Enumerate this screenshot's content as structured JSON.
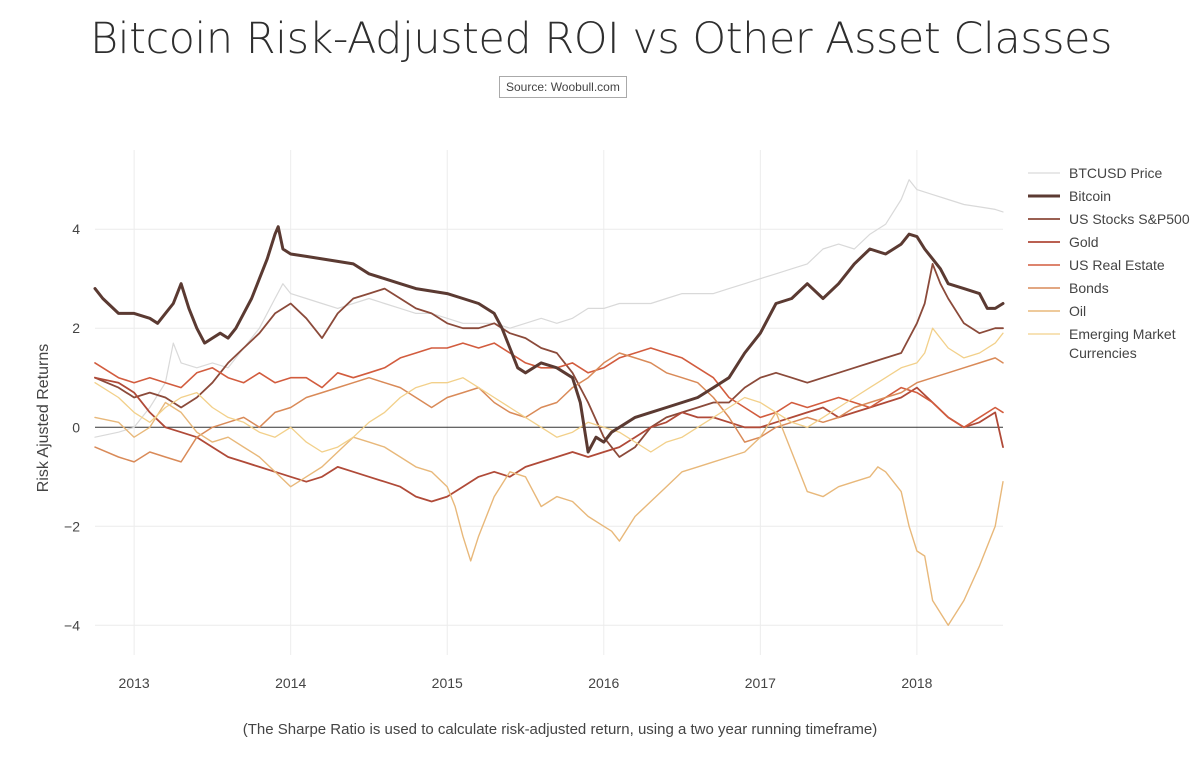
{
  "header": {
    "title": "Bitcoin Risk-Adjusted ROI vs Other Asset Classes",
    "source": "Source: Woobull.com"
  },
  "footnote": "(The Sharpe Ratio is used to calculate risk-adjusted return, using a two year running timeframe)",
  "chart_data": {
    "type": "line",
    "title": "Bitcoin Risk-Adjusted ROI vs Other Asset Classes",
    "ylabel": "Risk Ajusted Returns",
    "xlabel": "",
    "xlim": [
      2012.75,
      2018.55
    ],
    "ylim": [
      -4.6,
      5.6
    ],
    "xticks": [
      2013,
      2014,
      2015,
      2016,
      2017,
      2018
    ],
    "xtick_labels": [
      "2013",
      "2014",
      "2015",
      "2016",
      "2017",
      "2018"
    ],
    "yticks": [
      -4,
      -2,
      0,
      2,
      4
    ],
    "ytick_labels": [
      "−4",
      "−2",
      "0",
      "2",
      "4"
    ],
    "grid": true,
    "zero_line": true,
    "legend_position": "right",
    "series": [
      {
        "name": "BTCUSD Price",
        "color": "#d9d9d9",
        "width": 1.2,
        "x": [
          2012.75,
          2012.9,
          2013.0,
          2013.1,
          2013.2,
          2013.25,
          2013.3,
          2013.4,
          2013.5,
          2013.6,
          2013.7,
          2013.8,
          2013.9,
          2013.95,
          2014.0,
          2014.1,
          2014.2,
          2014.3,
          2014.4,
          2014.5,
          2014.6,
          2014.7,
          2014.8,
          2014.9,
          2015.0,
          2015.1,
          2015.2,
          2015.3,
          2015.4,
          2015.5,
          2015.6,
          2015.7,
          2015.8,
          2015.9,
          2016.0,
          2016.1,
          2016.2,
          2016.3,
          2016.4,
          2016.5,
          2016.6,
          2016.7,
          2016.8,
          2016.9,
          2017.0,
          2017.1,
          2017.2,
          2017.3,
          2017.4,
          2017.5,
          2017.6,
          2017.7,
          2017.8,
          2017.9,
          2017.95,
          2018.0,
          2018.1,
          2018.2,
          2018.3,
          2018.4,
          2018.5,
          2018.55
        ],
        "y": [
          -0.2,
          -0.1,
          0.0,
          0.4,
          0.9,
          1.7,
          1.3,
          1.2,
          1.3,
          1.2,
          1.6,
          2.0,
          2.6,
          2.9,
          2.7,
          2.6,
          2.5,
          2.4,
          2.5,
          2.6,
          2.5,
          2.4,
          2.3,
          2.3,
          2.2,
          2.1,
          2.1,
          2.1,
          2.0,
          2.1,
          2.2,
          2.1,
          2.2,
          2.4,
          2.4,
          2.5,
          2.5,
          2.5,
          2.6,
          2.7,
          2.7,
          2.7,
          2.8,
          2.9,
          3.0,
          3.1,
          3.2,
          3.3,
          3.6,
          3.7,
          3.6,
          3.9,
          4.1,
          4.6,
          5.0,
          4.8,
          4.7,
          4.6,
          4.5,
          4.45,
          4.4,
          4.35
        ]
      },
      {
        "name": "Bitcoin",
        "color": "#5b3a32",
        "width": 3,
        "x": [
          2012.75,
          2012.8,
          2012.9,
          2013.0,
          2013.1,
          2013.15,
          2013.2,
          2013.25,
          2013.3,
          2013.35,
          2013.4,
          2013.45,
          2013.5,
          2013.55,
          2013.6,
          2013.65,
          2013.7,
          2013.75,
          2013.8,
          2013.85,
          2013.9,
          2013.92,
          2013.95,
          2014.0,
          2014.1,
          2014.2,
          2014.3,
          2014.4,
          2014.5,
          2014.6,
          2014.7,
          2014.8,
          2014.9,
          2015.0,
          2015.1,
          2015.2,
          2015.3,
          2015.35,
          2015.4,
          2015.45,
          2015.5,
          2015.6,
          2015.7,
          2015.8,
          2015.85,
          2015.9,
          2015.95,
          2016.0,
          2016.05,
          2016.1,
          2016.2,
          2016.3,
          2016.4,
          2016.5,
          2016.6,
          2016.7,
          2016.8,
          2016.9,
          2017.0,
          2017.1,
          2017.2,
          2017.3,
          2017.4,
          2017.5,
          2017.6,
          2017.7,
          2017.8,
          2017.9,
          2017.95,
          2018.0,
          2018.05,
          2018.1,
          2018.15,
          2018.2,
          2018.3,
          2018.4,
          2018.45,
          2018.5,
          2018.55
        ],
        "y": [
          2.8,
          2.6,
          2.3,
          2.3,
          2.2,
          2.1,
          2.3,
          2.5,
          2.9,
          2.4,
          2.0,
          1.7,
          1.8,
          1.9,
          1.8,
          2.0,
          2.3,
          2.6,
          3.0,
          3.4,
          3.9,
          4.05,
          3.6,
          3.5,
          3.45,
          3.4,
          3.35,
          3.3,
          3.1,
          3.0,
          2.9,
          2.8,
          2.75,
          2.7,
          2.6,
          2.5,
          2.3,
          2.0,
          1.6,
          1.2,
          1.1,
          1.3,
          1.2,
          1.0,
          0.5,
          -0.5,
          -0.2,
          -0.3,
          -0.1,
          0.0,
          0.2,
          0.3,
          0.4,
          0.5,
          0.6,
          0.8,
          1.0,
          1.5,
          1.9,
          2.5,
          2.6,
          2.9,
          2.6,
          2.9,
          3.3,
          3.6,
          3.5,
          3.7,
          3.9,
          3.85,
          3.6,
          3.4,
          3.2,
          2.9,
          2.8,
          2.7,
          2.4,
          2.4,
          2.5
        ]
      },
      {
        "name": "US Stocks S&P500",
        "color": "#8b4a3a",
        "width": 1.8,
        "x": [
          2012.75,
          2012.9,
          2013.0,
          2013.1,
          2013.2,
          2013.3,
          2013.4,
          2013.5,
          2013.6,
          2013.7,
          2013.8,
          2013.9,
          2014.0,
          2014.1,
          2014.2,
          2014.3,
          2014.4,
          2014.5,
          2014.6,
          2014.7,
          2014.8,
          2014.9,
          2015.0,
          2015.1,
          2015.2,
          2015.3,
          2015.4,
          2015.5,
          2015.6,
          2015.7,
          2015.8,
          2015.9,
          2016.0,
          2016.1,
          2016.2,
          2016.3,
          2016.4,
          2016.5,
          2016.6,
          2016.7,
          2016.8,
          2016.9,
          2017.0,
          2017.1,
          2017.2,
          2017.3,
          2017.4,
          2017.5,
          2017.6,
          2017.7,
          2017.8,
          2017.9,
          2018.0,
          2018.05,
          2018.1,
          2018.15,
          2018.2,
          2018.3,
          2018.4,
          2018.5,
          2018.55
        ],
        "y": [
          1.0,
          0.8,
          0.6,
          0.7,
          0.6,
          0.4,
          0.6,
          0.9,
          1.3,
          1.6,
          1.9,
          2.3,
          2.5,
          2.2,
          1.8,
          2.3,
          2.6,
          2.7,
          2.8,
          2.6,
          2.4,
          2.3,
          2.1,
          2.0,
          2.0,
          2.1,
          1.9,
          1.8,
          1.6,
          1.5,
          1.1,
          0.5,
          -0.2,
          -0.6,
          -0.4,
          0.0,
          0.2,
          0.3,
          0.4,
          0.5,
          0.5,
          0.8,
          1.0,
          1.1,
          1.0,
          0.9,
          1.0,
          1.1,
          1.2,
          1.3,
          1.4,
          1.5,
          2.1,
          2.5,
          3.3,
          2.9,
          2.6,
          2.1,
          1.9,
          2.0,
          2.0
        ]
      },
      {
        "name": "Gold",
        "color": "#b04a38",
        "width": 1.8,
        "x": [
          2012.75,
          2012.9,
          2013.0,
          2013.1,
          2013.2,
          2013.3,
          2013.4,
          2013.5,
          2013.6,
          2013.7,
          2013.8,
          2013.9,
          2014.0,
          2014.1,
          2014.2,
          2014.3,
          2014.4,
          2014.5,
          2014.6,
          2014.7,
          2014.8,
          2014.9,
          2015.0,
          2015.1,
          2015.2,
          2015.3,
          2015.4,
          2015.5,
          2015.6,
          2015.7,
          2015.8,
          2015.9,
          2016.0,
          2016.1,
          2016.2,
          2016.3,
          2016.4,
          2016.5,
          2016.6,
          2016.7,
          2016.8,
          2016.9,
          2017.0,
          2017.1,
          2017.2,
          2017.3,
          2017.4,
          2017.5,
          2017.6,
          2017.7,
          2017.8,
          2017.9,
          2018.0,
          2018.1,
          2018.2,
          2018.3,
          2018.4,
          2018.5,
          2018.55
        ],
        "y": [
          1.0,
          0.9,
          0.7,
          0.3,
          0.0,
          -0.1,
          -0.2,
          -0.4,
          -0.6,
          -0.7,
          -0.8,
          -0.9,
          -1.0,
          -1.1,
          -1.0,
          -0.8,
          -0.9,
          -1.0,
          -1.1,
          -1.2,
          -1.4,
          -1.5,
          -1.4,
          -1.2,
          -1.0,
          -0.9,
          -1.0,
          -0.8,
          -0.7,
          -0.6,
          -0.5,
          -0.6,
          -0.5,
          -0.4,
          -0.2,
          0.0,
          0.1,
          0.3,
          0.2,
          0.2,
          0.1,
          0.0,
          0.0,
          0.1,
          0.2,
          0.3,
          0.4,
          0.2,
          0.3,
          0.4,
          0.5,
          0.6,
          0.8,
          0.5,
          0.2,
          0.0,
          0.1,
          0.3,
          -0.4
        ]
      },
      {
        "name": "US Real Estate",
        "color": "#d25c3e",
        "width": 1.6,
        "x": [
          2012.75,
          2012.9,
          2013.0,
          2013.1,
          2013.2,
          2013.3,
          2013.4,
          2013.5,
          2013.6,
          2013.7,
          2013.8,
          2013.9,
          2014.0,
          2014.1,
          2014.2,
          2014.3,
          2014.4,
          2014.5,
          2014.6,
          2014.7,
          2014.8,
          2014.9,
          2015.0,
          2015.1,
          2015.2,
          2015.3,
          2015.4,
          2015.5,
          2015.6,
          2015.7,
          2015.8,
          2015.9,
          2016.0,
          2016.1,
          2016.2,
          2016.3,
          2016.4,
          2016.5,
          2016.6,
          2016.7,
          2016.8,
          2016.9,
          2017.0,
          2017.1,
          2017.2,
          2017.3,
          2017.4,
          2017.5,
          2017.6,
          2017.7,
          2017.8,
          2017.9,
          2018.0,
          2018.1,
          2018.2,
          2018.3,
          2018.4,
          2018.5,
          2018.55
        ],
        "y": [
          1.3,
          1.0,
          0.9,
          1.0,
          0.9,
          0.8,
          1.1,
          1.2,
          1.0,
          0.9,
          1.1,
          0.9,
          1.0,
          1.0,
          0.8,
          1.1,
          1.0,
          1.1,
          1.2,
          1.4,
          1.5,
          1.6,
          1.6,
          1.7,
          1.6,
          1.7,
          1.5,
          1.3,
          1.2,
          1.2,
          1.3,
          1.1,
          1.2,
          1.4,
          1.5,
          1.6,
          1.5,
          1.4,
          1.2,
          1.0,
          0.6,
          0.4,
          0.2,
          0.3,
          0.5,
          0.4,
          0.5,
          0.6,
          0.5,
          0.4,
          0.6,
          0.8,
          0.7,
          0.5,
          0.2,
          0.0,
          0.2,
          0.4,
          0.3
        ]
      },
      {
        "name": "Bonds",
        "color": "#d98a58",
        "width": 1.5,
        "x": [
          2012.75,
          2012.9,
          2013.0,
          2013.1,
          2013.2,
          2013.3,
          2013.4,
          2013.5,
          2013.6,
          2013.7,
          2013.8,
          2013.9,
          2014.0,
          2014.1,
          2014.2,
          2014.3,
          2014.4,
          2014.5,
          2014.6,
          2014.7,
          2014.8,
          2014.9,
          2015.0,
          2015.1,
          2015.2,
          2015.3,
          2015.4,
          2015.5,
          2015.6,
          2015.7,
          2015.8,
          2015.9,
          2016.0,
          2016.1,
          2016.2,
          2016.3,
          2016.4,
          2016.5,
          2016.6,
          2016.7,
          2016.8,
          2016.9,
          2017.0,
          2017.1,
          2017.2,
          2017.3,
          2017.4,
          2017.5,
          2017.6,
          2017.7,
          2017.8,
          2017.9,
          2018.0,
          2018.1,
          2018.2,
          2018.3,
          2018.4,
          2018.5,
          2018.55
        ],
        "y": [
          -0.4,
          -0.6,
          -0.7,
          -0.5,
          -0.6,
          -0.7,
          -0.2,
          0.0,
          0.1,
          0.2,
          0.0,
          0.3,
          0.4,
          0.6,
          0.7,
          0.8,
          0.9,
          1.0,
          0.9,
          0.8,
          0.6,
          0.4,
          0.6,
          0.7,
          0.8,
          0.5,
          0.3,
          0.2,
          0.4,
          0.5,
          0.8,
          1.0,
          1.3,
          1.5,
          1.4,
          1.3,
          1.1,
          1.0,
          0.9,
          0.6,
          0.2,
          -0.3,
          -0.2,
          0.0,
          0.1,
          0.2,
          0.1,
          0.2,
          0.4,
          0.5,
          0.6,
          0.7,
          0.9,
          1.0,
          1.1,
          1.2,
          1.3,
          1.4,
          1.3
        ]
      },
      {
        "name": "Oil",
        "color": "#e8b87a",
        "width": 1.4,
        "x": [
          2012.75,
          2012.9,
          2013.0,
          2013.1,
          2013.2,
          2013.3,
          2013.4,
          2013.5,
          2013.6,
          2013.7,
          2013.8,
          2013.9,
          2014.0,
          2014.1,
          2014.2,
          2014.3,
          2014.4,
          2014.5,
          2014.6,
          2014.7,
          2014.8,
          2014.9,
          2015.0,
          2015.05,
          2015.1,
          2015.15,
          2015.2,
          2015.3,
          2015.4,
          2015.5,
          2015.6,
          2015.7,
          2015.8,
          2015.9,
          2016.0,
          2016.05,
          2016.1,
          2016.2,
          2016.3,
          2016.4,
          2016.5,
          2016.6,
          2016.7,
          2016.8,
          2016.9,
          2017.0,
          2017.1,
          2017.2,
          2017.3,
          2017.4,
          2017.5,
          2017.6,
          2017.7,
          2017.75,
          2017.8,
          2017.9,
          2017.95,
          2018.0,
          2018.05,
          2018.1,
          2018.2,
          2018.3,
          2018.4,
          2018.5,
          2018.55
        ],
        "y": [
          0.2,
          0.1,
          -0.2,
          0.0,
          0.5,
          0.3,
          -0.1,
          -0.3,
          -0.2,
          -0.4,
          -0.6,
          -0.9,
          -1.2,
          -1.0,
          -0.8,
          -0.5,
          -0.2,
          -0.3,
          -0.4,
          -0.6,
          -0.8,
          -0.9,
          -1.2,
          -1.6,
          -2.2,
          -2.7,
          -2.2,
          -1.4,
          -0.9,
          -1.0,
          -1.6,
          -1.4,
          -1.5,
          -1.8,
          -2.0,
          -2.1,
          -2.3,
          -1.8,
          -1.5,
          -1.2,
          -0.9,
          -0.8,
          -0.7,
          -0.6,
          -0.5,
          -0.2,
          0.3,
          -0.5,
          -1.3,
          -1.4,
          -1.2,
          -1.1,
          -1.0,
          -0.8,
          -0.9,
          -1.3,
          -2.0,
          -2.5,
          -2.6,
          -3.5,
          -4.0,
          -3.5,
          -2.8,
          -2.0,
          -1.1
        ]
      },
      {
        "name": "Emerging Market Currencies",
        "color": "#f2d08a",
        "width": 1.3,
        "x": [
          2012.75,
          2012.9,
          2013.0,
          2013.1,
          2013.2,
          2013.3,
          2013.4,
          2013.5,
          2013.6,
          2013.7,
          2013.8,
          2013.9,
          2014.0,
          2014.1,
          2014.2,
          2014.3,
          2014.4,
          2014.5,
          2014.6,
          2014.7,
          2014.8,
          2014.9,
          2015.0,
          2015.1,
          2015.2,
          2015.3,
          2015.4,
          2015.5,
          2015.6,
          2015.7,
          2015.8,
          2015.9,
          2016.0,
          2016.1,
          2016.2,
          2016.3,
          2016.4,
          2016.5,
          2016.6,
          2016.7,
          2016.8,
          2016.9,
          2017.0,
          2017.1,
          2017.2,
          2017.3,
          2017.4,
          2017.5,
          2017.6,
          2017.7,
          2017.8,
          2017.9,
          2018.0,
          2018.05,
          2018.1,
          2018.2,
          2018.3,
          2018.4,
          2018.5,
          2018.55
        ],
        "y": [
          0.9,
          0.6,
          0.3,
          0.1,
          0.4,
          0.6,
          0.7,
          0.4,
          0.2,
          0.1,
          -0.1,
          -0.2,
          0.0,
          -0.3,
          -0.5,
          -0.4,
          -0.2,
          0.1,
          0.3,
          0.6,
          0.8,
          0.9,
          0.9,
          1.0,
          0.8,
          0.6,
          0.4,
          0.2,
          0.0,
          -0.2,
          -0.1,
          0.1,
          0.0,
          -0.1,
          -0.3,
          -0.5,
          -0.3,
          -0.2,
          0.0,
          0.2,
          0.4,
          0.6,
          0.5,
          0.3,
          0.1,
          0.0,
          0.2,
          0.4,
          0.6,
          0.8,
          1.0,
          1.2,
          1.3,
          1.5,
          2.0,
          1.6,
          1.4,
          1.5,
          1.7,
          1.9
        ]
      }
    ]
  }
}
